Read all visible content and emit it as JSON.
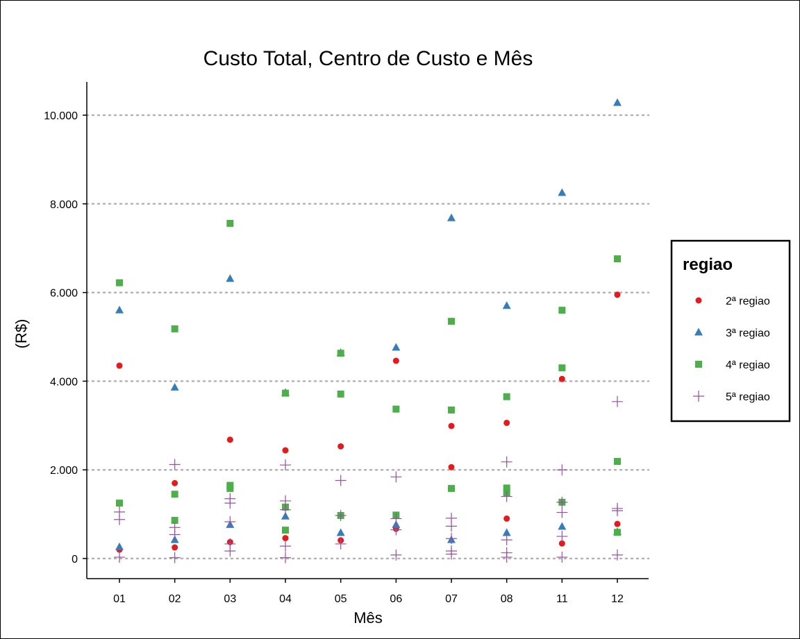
{
  "chart_data": {
    "type": "scatter",
    "title": "Custo Total, Centro de Custo e Mês",
    "xlabel": "Mês",
    "ylabel": "(R$)",
    "categories": [
      "01",
      "02",
      "03",
      "04",
      "05",
      "06",
      "07",
      "08",
      "11",
      "12"
    ],
    "ylim": [
      -450,
      10750
    ],
    "yticks": [
      0,
      2000,
      4000,
      6000,
      8000,
      10000
    ],
    "ytick_labels": [
      "0",
      "2.000",
      "4.000",
      "6.000",
      "8.000",
      "10.000"
    ],
    "grid": "horizontal dotted",
    "legend": {
      "title": "regiao",
      "placement": "right"
    },
    "series": [
      {
        "name": "2ª regiao",
        "marker": "circle",
        "color": "#E41A1C",
        "points": [
          [
            "01",
            4350
          ],
          [
            "01",
            200
          ],
          [
            "02",
            1700
          ],
          [
            "02",
            250
          ],
          [
            "03",
            2680
          ],
          [
            "03",
            370
          ],
          [
            "04",
            2440
          ],
          [
            "04",
            460
          ],
          [
            "05",
            2530
          ],
          [
            "05",
            410
          ],
          [
            "06",
            4460
          ],
          [
            "06",
            670
          ],
          [
            "07",
            2990
          ],
          [
            "07",
            2060
          ],
          [
            "08",
            3060
          ],
          [
            "08",
            900
          ],
          [
            "11",
            4050
          ],
          [
            "11",
            340
          ],
          [
            "12",
            5950
          ],
          [
            "12",
            780
          ]
        ]
      },
      {
        "name": "3ª regiao",
        "marker": "triangle",
        "color": "#377EB8",
        "points": [
          [
            "01",
            5600
          ],
          [
            "01",
            260
          ],
          [
            "02",
            3860
          ],
          [
            "02",
            420
          ],
          [
            "03",
            6310
          ],
          [
            "03",
            760
          ],
          [
            "04",
            3740
          ],
          [
            "04",
            950
          ],
          [
            "05",
            4640
          ],
          [
            "05",
            580
          ],
          [
            "06",
            4760
          ],
          [
            "06",
            760
          ],
          [
            "07",
            7680
          ],
          [
            "07",
            420
          ],
          [
            "08",
            5700
          ],
          [
            "08",
            580
          ],
          [
            "11",
            8250
          ],
          [
            "11",
            720
          ],
          [
            "12",
            10280
          ],
          [
            "12",
            600
          ]
        ]
      },
      {
        "name": "4ª regiao",
        "marker": "square",
        "color": "#4DAF4A",
        "points": [
          [
            "01",
            6220
          ],
          [
            "01",
            1250
          ],
          [
            "02",
            5180
          ],
          [
            "02",
            1450
          ],
          [
            "02",
            860
          ],
          [
            "03",
            7560
          ],
          [
            "03",
            1650
          ],
          [
            "03",
            1580
          ],
          [
            "04",
            3730
          ],
          [
            "04",
            1160
          ],
          [
            "04",
            640
          ],
          [
            "05",
            4630
          ],
          [
            "05",
            3710
          ],
          [
            "05",
            970
          ],
          [
            "06",
            3370
          ],
          [
            "06",
            980
          ],
          [
            "07",
            5350
          ],
          [
            "07",
            3350
          ],
          [
            "07",
            1580
          ],
          [
            "08",
            3650
          ],
          [
            "08",
            1590
          ],
          [
            "08",
            1480
          ],
          [
            "11",
            5600
          ],
          [
            "11",
            4300
          ],
          [
            "11",
            1270
          ],
          [
            "12",
            6760
          ],
          [
            "12",
            2190
          ],
          [
            "12",
            590
          ]
        ]
      },
      {
        "name": "5ª regiao",
        "marker": "plus",
        "color": "#984EA3",
        "points": [
          [
            "01",
            1050
          ],
          [
            "01",
            880
          ],
          [
            "01",
            30
          ],
          [
            "02",
            2120
          ],
          [
            "02",
            700
          ],
          [
            "02",
            540
          ],
          [
            "02",
            20
          ],
          [
            "03",
            1350
          ],
          [
            "03",
            1250
          ],
          [
            "03",
            830
          ],
          [
            "03",
            330
          ],
          [
            "03",
            170
          ],
          [
            "04",
            2110
          ],
          [
            "04",
            1300
          ],
          [
            "04",
            1100
          ],
          [
            "04",
            280
          ],
          [
            "04",
            20
          ],
          [
            "05",
            1760
          ],
          [
            "05",
            970
          ],
          [
            "05",
            330
          ],
          [
            "06",
            1840
          ],
          [
            "06",
            900
          ],
          [
            "06",
            650
          ],
          [
            "06",
            80
          ],
          [
            "07",
            910
          ],
          [
            "07",
            730
          ],
          [
            "07",
            450
          ],
          [
            "07",
            170
          ],
          [
            "07",
            100
          ],
          [
            "08",
            2180
          ],
          [
            "08",
            1400
          ],
          [
            "08",
            420
          ],
          [
            "08",
            130
          ],
          [
            "08",
            30
          ],
          [
            "11",
            2000
          ],
          [
            "11",
            1270
          ],
          [
            "11",
            1040
          ],
          [
            "11",
            500
          ],
          [
            "11",
            30
          ],
          [
            "12",
            3540
          ],
          [
            "12",
            1130
          ],
          [
            "12",
            1080
          ],
          [
            "12",
            80
          ]
        ]
      }
    ]
  }
}
